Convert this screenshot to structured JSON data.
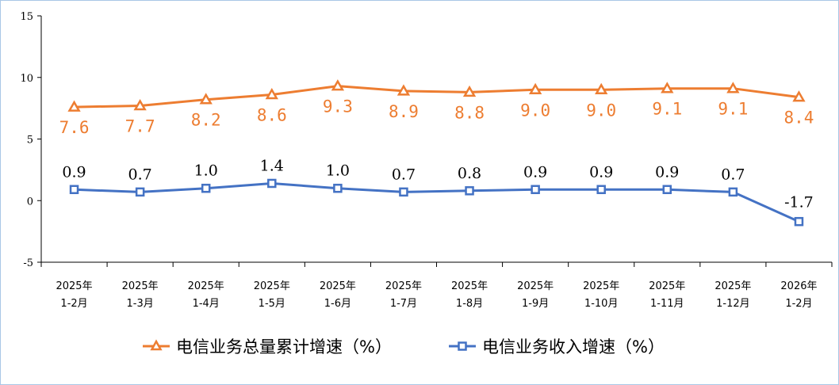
{
  "chart_data": {
    "type": "line",
    "categories": [
      [
        "2025年",
        "1-2月"
      ],
      [
        "2025年",
        "1-3月"
      ],
      [
        "2025年",
        "1-4月"
      ],
      [
        "2025年",
        "1-5月"
      ],
      [
        "2025年",
        "1-6月"
      ],
      [
        "2025年",
        "1-7月"
      ],
      [
        "2025年",
        "1-8月"
      ],
      [
        "2025年",
        "1-9月"
      ],
      [
        "2025年",
        "1-10月"
      ],
      [
        "2025年",
        "1-11月"
      ],
      [
        "2025年",
        "1-12月"
      ],
      [
        "2026年",
        "1-2月"
      ]
    ],
    "series": [
      {
        "name": "电信业务总量累计增速（%）",
        "color": "#ed7d31",
        "marker": "triangle",
        "values": [
          7.6,
          7.7,
          8.2,
          8.6,
          9.3,
          8.9,
          8.8,
          9.0,
          9.0,
          9.1,
          9.1,
          8.4
        ],
        "labels": [
          "7.6",
          "7.7",
          "8.2",
          "8.6",
          "9.3",
          "8.9",
          "8.8",
          "9.0",
          "9.0",
          "9.1",
          "9.1",
          "8.4"
        ]
      },
      {
        "name": "电信业务收入增速（%）",
        "color": "#4472c4",
        "marker": "square",
        "values": [
          0.9,
          0.7,
          1.0,
          1.4,
          1.0,
          0.7,
          0.8,
          0.9,
          0.9,
          0.9,
          0.7,
          -1.7
        ],
        "labels": [
          "0.9",
          "0.7",
          "1.0",
          "1.4",
          "1.0",
          "0.7",
          "0.8",
          "0.9",
          "0.9",
          "0.9",
          "0.7",
          "-1.7"
        ]
      }
    ],
    "yticks": [
      15,
      10,
      5,
      0,
      -5
    ],
    "ylim": [
      -5,
      15
    ],
    "grid": false,
    "legend": "bottom"
  }
}
